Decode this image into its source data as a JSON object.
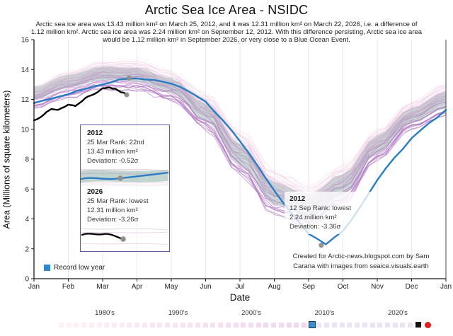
{
  "header": {
    "title": "Arctic Sea Ice Area - NSIDC",
    "subtitle": "Arctic sea ice area was 13.43 million km² on March 25, 2012, and it was 12.31 million km² on March 22, 2026, i.e. a difference of 1.12 million km². Arctic sea ice area was 2.24 million km² on September 12, 2012. With this difference persisting, Arctic sea ice area would be 1.12 million km² in September 2026, or very close to a Blue Ocean Event."
  },
  "chart_data": {
    "type": "line",
    "title": "Arctic Sea Ice Area - NSIDC",
    "xlabel": "Date",
    "ylabel": "Area (Millions of square kilometers)",
    "ylim": [
      0,
      16
    ],
    "ytick_step": 2,
    "x_tick_labels": [
      "Jan",
      "Feb",
      "Mar",
      "Apr",
      "May",
      "Jun",
      "Jul",
      "Aug",
      "Sep",
      "Oct",
      "Nov",
      "Dec",
      "Jan"
    ],
    "grid": "vertical monthly gridlines, light gray",
    "legend_position": "bottom-left inside plot",
    "series": [
      {
        "name": "2012",
        "role": "record-low-year",
        "color": "#2a7cc4",
        "x_step_months": 0.5,
        "values": [
          11.75,
          12.05,
          12.35,
          12.7,
          13.0,
          13.35,
          13.4,
          13.3,
          13.05,
          12.55,
          11.85,
          10.6,
          9.2,
          7.6,
          5.9,
          4.4,
          3.0,
          2.3,
          3.2,
          4.8,
          6.6,
          8.1,
          9.4,
          10.4,
          11.3
        ]
      },
      {
        "name": "2026",
        "role": "current-year",
        "color": "#000000",
        "points_t_v": [
          [
            0,
            10.6
          ],
          [
            0.3,
            11.0
          ],
          [
            0.5,
            11.35
          ],
          [
            0.7,
            11.3
          ],
          [
            1.0,
            11.65
          ],
          [
            1.2,
            11.55
          ],
          [
            1.5,
            12.1
          ],
          [
            1.75,
            12.35
          ],
          [
            2.0,
            12.75
          ],
          [
            2.2,
            12.8
          ],
          [
            2.45,
            12.6
          ],
          [
            2.7,
            12.31
          ]
        ]
      }
    ],
    "background": {
      "years_from": 1979,
      "years_to": 2025,
      "envelope_top_monthly": [
        12.9,
        13.9,
        14.6,
        14.65,
        13.9,
        12.4,
        10.0,
        7.3,
        6.2,
        7.6,
        10.0,
        11.9,
        13.1
      ],
      "envelope_bottom_monthly": [
        11.4,
        12.1,
        12.7,
        12.6,
        11.9,
        10.0,
        6.9,
        4.3,
        3.6,
        5.0,
        7.9,
        10.0,
        10.9
      ],
      "color_early": "#f6cee3",
      "color_late": "#a76bbd"
    },
    "stddev_band": {
      "top_monthly": [
        12.85,
        13.65,
        14.2,
        14.1,
        13.4,
        11.7,
        9.0,
        6.4,
        5.6,
        7.0,
        9.6,
        11.4,
        12.5
      ],
      "bottom_monthly": [
        12.0,
        12.8,
        13.3,
        13.2,
        12.45,
        10.55,
        7.6,
        5.0,
        4.1,
        5.6,
        8.4,
        10.4,
        11.4
      ],
      "color": "rgba(134,170,160,0.42)"
    },
    "markers": [
      {
        "label": "25 Mar 2012",
        "t": 2.77,
        "value": 13.43
      },
      {
        "label": "22 Mar 2026",
        "t": 2.7,
        "value": 12.31
      },
      {
        "label": "12 Sep 2012",
        "t": 8.37,
        "value": 2.24
      }
    ],
    "marker_color": "#8f8f8f"
  },
  "annotations": {
    "march_box": {
      "y2012": {
        "year": "2012",
        "rank": "25 Mar Rank: 22nd",
        "area": "13.43 million km²",
        "deviation": "Deviation: -0.52σ"
      },
      "y2026": {
        "year": "2026",
        "rank": "25 Mar Rank: lowest",
        "area": "12.31 million km²",
        "deviation": "Deviation: -3.26σ"
      }
    },
    "sep_box": {
      "year": "2012",
      "rank": "12 Sep Rank: lowest",
      "area": "2.24 million km²",
      "deviation": "Deviation: -3.36σ"
    }
  },
  "legend": {
    "record_low_label": "Record low year",
    "record_low_color": "#2f86c9"
  },
  "credit": {
    "line1": "Created for Arctic-news.blogspot.com by Sam",
    "line2": "Carana with images from seaice.visuals.earth"
  },
  "timeline": {
    "decade_labels": [
      "1980's",
      "1990's",
      "2000's",
      "2010's",
      "2020's"
    ],
    "start_year": 1979,
    "end_year": 2026,
    "record_low_year": 2012,
    "current_year": 2026,
    "end_marker": "red-circle",
    "colors": {
      "record_low": "#3a8fd2",
      "record_low_border": "#17344f",
      "current": "#111111",
      "end_marker": "#e01f1f",
      "early": "#fdf1f7",
      "mid": "#f0d6ea",
      "late": "#eae4f3"
    }
  }
}
